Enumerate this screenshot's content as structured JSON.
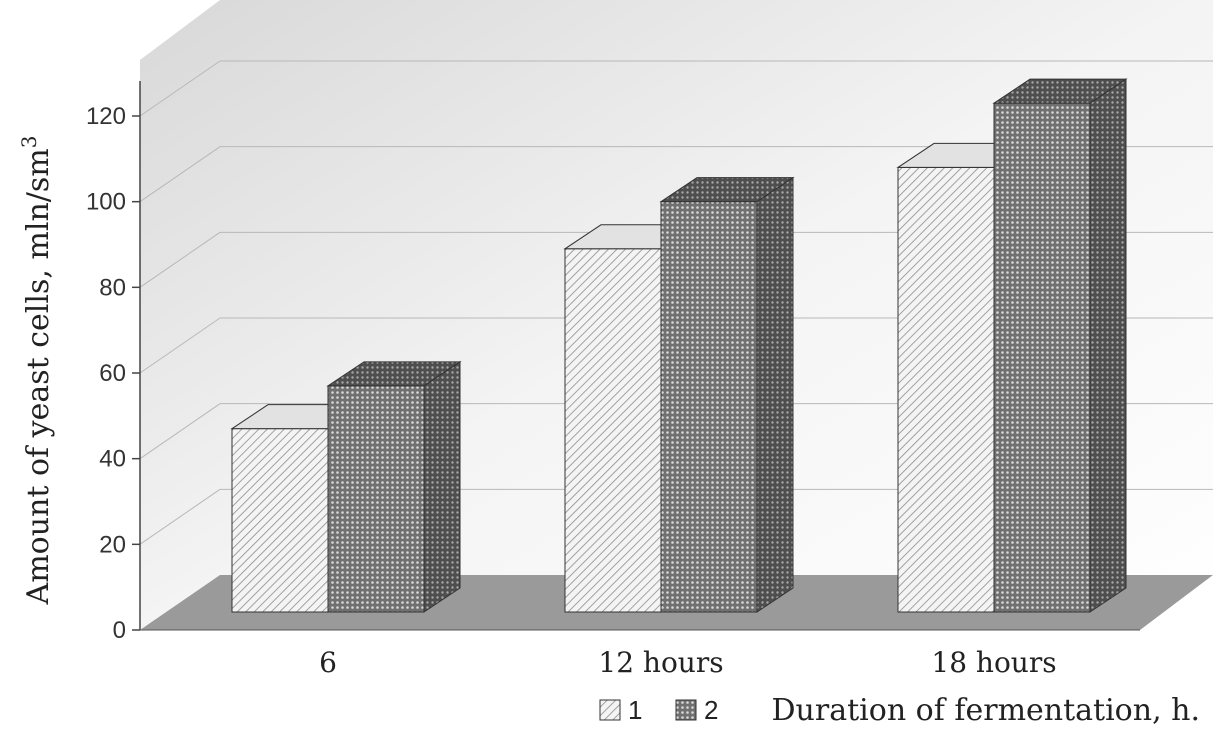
{
  "chart_data": {
    "type": "bar",
    "style": "3d-clustered-columns",
    "title": "",
    "xlabel": "Duration of fermentation, h.",
    "ylabel": "Amount of  yeast cells, mln/sm",
    "ylabel_superscript": "3",
    "categories": [
      "6",
      "12 hours",
      "18 hours"
    ],
    "series": [
      {
        "name": "1",
        "values": [
          47,
          89,
          108
        ]
      },
      {
        "name": "2",
        "values": [
          57,
          100,
          123
        ]
      }
    ],
    "yticks": [
      "0",
      "20",
      "40",
      "60",
      "80",
      "100",
      "120"
    ],
    "ylim": [
      0,
      120
    ],
    "grid": true,
    "legend_position": "bottom",
    "colors": {
      "floor": "#9a9a9a",
      "wall": "#e8e8e8",
      "series1_face": "#f2f2f2",
      "series1_hatch": "#8a8a8a",
      "series2_face": "#6e6e6e",
      "series2_dots": "#d9d9d9"
    }
  }
}
